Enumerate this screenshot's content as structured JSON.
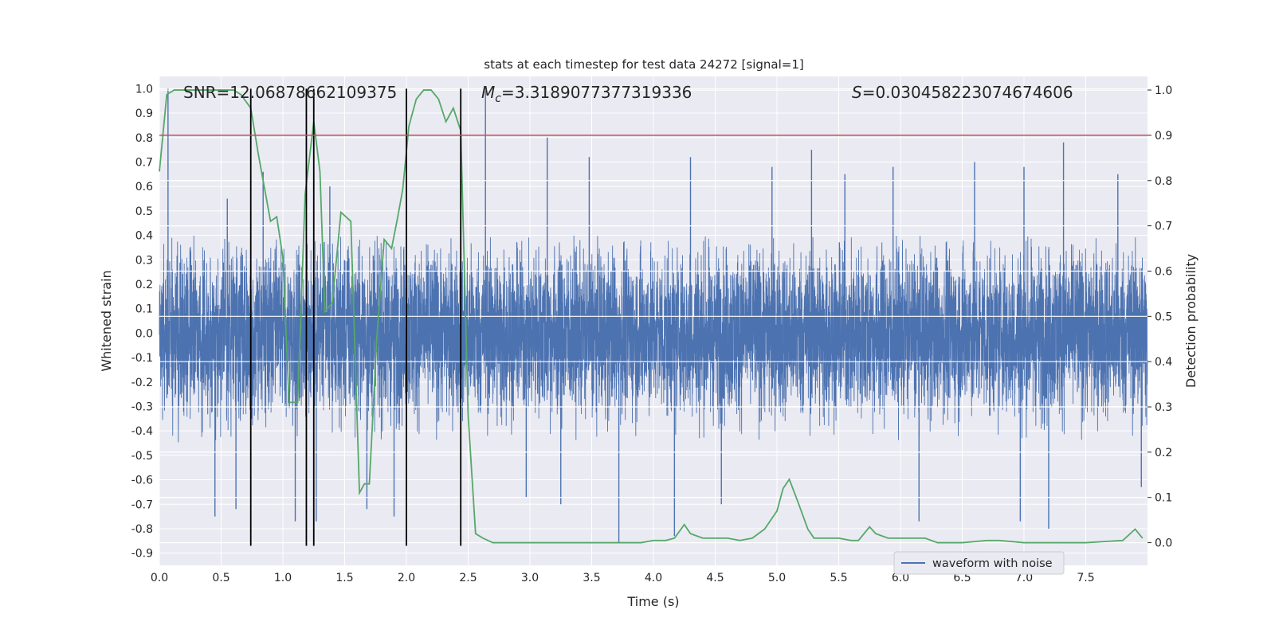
{
  "chart_data": {
    "type": "line",
    "title": "stats at each timestep for test data 24272 [signal=1]",
    "xlabel": "Time (s)",
    "ylabel": "Whitened strain",
    "ylabel_right": "Detection probability",
    "xlim": [
      0,
      8
    ],
    "ylim": [
      -0.95,
      1.05
    ],
    "ylim_right": [
      -0.05,
      1.03
    ],
    "x_ticks": [
      "0.0",
      "0.5",
      "1.0",
      "1.5",
      "2.0",
      "2.5",
      "3.0",
      "3.5",
      "4.0",
      "4.5",
      "5.0",
      "5.5",
      "6.0",
      "6.5",
      "7.0",
      "7.5"
    ],
    "y_ticks": [
      "1.0",
      "0.9",
      "0.8",
      "0.7",
      "0.6",
      "0.5",
      "0.4",
      "0.3",
      "0.2",
      "0.1",
      "0.0",
      "-0.1",
      "-0.2",
      "-0.3",
      "-0.4",
      "-0.5",
      "-0.6",
      "-0.7",
      "-0.8",
      "-0.9"
    ],
    "y_ticks_right": [
      "1.0",
      "0.9",
      "0.8",
      "0.7",
      "0.6",
      "0.5",
      "0.4",
      "0.3",
      "0.2",
      "0.1",
      "0.0"
    ],
    "grid": true,
    "legend": {
      "location": "lower right",
      "entries": [
        "waveform with noise"
      ]
    },
    "annotations": {
      "snr": "SNR=12.06878662109375",
      "mc_symbol": "M",
      "mc_sub": "c",
      "mc_value": "=3.3189077377319336",
      "s_symbol": "S",
      "s_value": "=0.030458223074674606"
    },
    "threshold_right": 0.9,
    "vlines_x": [
      0.74,
      1.19,
      1.25,
      2.0,
      2.44
    ],
    "vline_range": [
      -0.87,
      1.0
    ],
    "waveform_with_noise": {
      "description_of_series": "dense noise trace, typical envelope",
      "typical_max": 0.4,
      "typical_min": -0.45,
      "peaks": [
        {
          "x": 0.07,
          "y": 1.0
        },
        {
          "x": 0.45,
          "y": -0.75
        },
        {
          "x": 0.55,
          "y": 0.55
        },
        {
          "x": 0.62,
          "y": -0.72
        },
        {
          "x": 0.74,
          "y": 0.68
        },
        {
          "x": 0.84,
          "y": 0.66
        },
        {
          "x": 1.1,
          "y": -0.77
        },
        {
          "x": 1.27,
          "y": -0.77
        },
        {
          "x": 1.38,
          "y": 0.6
        },
        {
          "x": 1.68,
          "y": -0.72
        },
        {
          "x": 2.0,
          "y": 0.45
        },
        {
          "x": 2.64,
          "y": 1.0
        },
        {
          "x": 3.14,
          "y": 0.8
        },
        {
          "x": 3.25,
          "y": -0.7
        },
        {
          "x": 3.72,
          "y": -0.86
        },
        {
          "x": 3.48,
          "y": 0.72
        },
        {
          "x": 4.17,
          "y": -0.83
        },
        {
          "x": 4.3,
          "y": 0.72
        },
        {
          "x": 4.55,
          "y": -0.7
        },
        {
          "x": 4.96,
          "y": 0.68
        },
        {
          "x": 5.28,
          "y": 0.75
        },
        {
          "x": 5.55,
          "y": 0.65
        },
        {
          "x": 5.94,
          "y": 0.68
        },
        {
          "x": 6.15,
          "y": -0.77
        },
        {
          "x": 6.6,
          "y": 0.7
        },
        {
          "x": 7.0,
          "y": 0.68
        },
        {
          "x": 7.32,
          "y": 0.78
        },
        {
          "x": 6.97,
          "y": -0.77
        },
        {
          "x": 7.2,
          "y": -0.8
        },
        {
          "x": 7.76,
          "y": 0.65
        },
        {
          "x": 7.95,
          "y": -0.63
        },
        {
          "x": 1.9,
          "y": -0.75
        },
        {
          "x": 2.97,
          "y": -0.67
        }
      ]
    },
    "detection_probability": {
      "axis": "right",
      "x": [
        0.0,
        0.06,
        0.12,
        0.2,
        0.3,
        0.4,
        0.5,
        0.6,
        0.66,
        0.74,
        0.8,
        0.9,
        0.95,
        1.0,
        1.05,
        1.12,
        1.18,
        1.25,
        1.3,
        1.34,
        1.4,
        1.47,
        1.55,
        1.62,
        1.66,
        1.7,
        1.76,
        1.82,
        1.88,
        1.93,
        1.97,
        2.02,
        2.08,
        2.14,
        2.2,
        2.26,
        2.32,
        2.38,
        2.44,
        2.5,
        2.56,
        2.62,
        2.7,
        2.8,
        3.0,
        3.5,
        3.9,
        4.0,
        4.1,
        4.17,
        4.25,
        4.3,
        4.4,
        4.5,
        4.6,
        4.7,
        4.8,
        4.9,
        5.0,
        5.05,
        5.1,
        5.17,
        5.25,
        5.3,
        5.4,
        5.5,
        5.6,
        5.66,
        5.75,
        5.8,
        5.9,
        6.0,
        6.1,
        6.15,
        6.2,
        6.3,
        6.5,
        6.7,
        6.8,
        7.0,
        7.3,
        7.5,
        7.8,
        7.9,
        7.96
      ],
      "y": [
        0.82,
        0.99,
        1.0,
        1.0,
        1.0,
        1.0,
        1.0,
        1.0,
        0.99,
        0.96,
        0.86,
        0.71,
        0.72,
        0.63,
        0.31,
        0.31,
        0.77,
        0.93,
        0.82,
        0.51,
        0.53,
        0.73,
        0.71,
        0.11,
        0.13,
        0.13,
        0.45,
        0.67,
        0.65,
        0.72,
        0.78,
        0.92,
        0.98,
        1.0,
        1.0,
        0.98,
        0.93,
        0.96,
        0.91,
        0.28,
        0.02,
        0.01,
        0.0,
        0.0,
        0.0,
        0.0,
        0.0,
        0.005,
        0.005,
        0.01,
        0.04,
        0.02,
        0.01,
        0.01,
        0.01,
        0.005,
        0.01,
        0.03,
        0.07,
        0.12,
        0.14,
        0.09,
        0.03,
        0.01,
        0.01,
        0.01,
        0.005,
        0.005,
        0.035,
        0.02,
        0.01,
        0.01,
        0.01,
        0.01,
        0.01,
        0.0,
        0.0,
        0.005,
        0.005,
        0.0,
        0.0,
        0.0,
        0.005,
        0.03,
        0.01
      ]
    },
    "colors": {
      "background": "#eaeaf2",
      "grid": "#ffffff",
      "waveform": "#4c72b0",
      "probability": "#55a868",
      "threshold": "#c44e52",
      "vlines": "#000000",
      "text": "#262626"
    }
  }
}
